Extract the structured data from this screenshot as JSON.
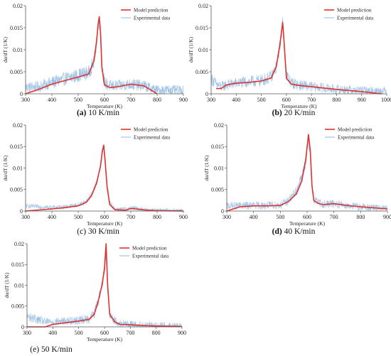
{
  "chart_data": [
    {
      "type": "line",
      "caption_letter": "(a)",
      "caption_text": " 10 K/min",
      "xlabel": "Temperature (K)",
      "ylabel": "dα/dT (1/K)",
      "xlim": [
        300,
        900
      ],
      "ylim": [
        0,
        0.02
      ],
      "xticks": [
        "300",
        "400",
        "500",
        "600",
        "700",
        "800",
        "900"
      ],
      "yticks": [
        "0",
        "0.005",
        "0.01",
        "0.015",
        "0.02"
      ],
      "legend": [
        "Model prediction",
        "Experimental data"
      ],
      "series": [
        {
          "name": "Model prediction",
          "x": [
            300,
            350,
            400,
            450,
            500,
            540,
            560,
            570,
            575,
            580,
            585,
            590,
            600,
            620,
            650,
            700,
            750,
            800
          ],
          "y": [
            0,
            0.001,
            0.0022,
            0.003,
            0.0038,
            0.0045,
            0.0075,
            0.012,
            0.0155,
            0.0175,
            0.014,
            0.006,
            0.002,
            0.0014,
            0.0016,
            0.0022,
            0.0018,
            0
          ]
        },
        {
          "name": "Experimental data",
          "x": [
            300,
            350,
            400,
            450,
            500,
            540,
            560,
            570,
            575,
            580,
            585,
            590,
            600,
            620,
            650,
            700,
            750,
            800,
            850,
            900
          ],
          "y": [
            0.0015,
            0.0016,
            0.0026,
            0.0034,
            0.0042,
            0.0048,
            0.0072,
            0.0118,
            0.015,
            0.0168,
            0.0135,
            0.0065,
            0.0025,
            0.0018,
            0.0018,
            0.0022,
            0.0018,
            0.0008,
            0.0009,
            0.0007
          ],
          "noise": 0.0016
        }
      ]
    },
    {
      "type": "line",
      "caption_letter": "(b)",
      "caption_text": " 20 K/min",
      "xlabel": "Temperature (K)",
      "ylabel": "dα/dT (1/K)",
      "xlim": [
        300,
        1000
      ],
      "ylim": [
        0,
        0.02
      ],
      "xticks": [
        "300",
        "400",
        "500",
        "600",
        "700",
        "800",
        "900",
        "1000"
      ],
      "yticks": [
        "0",
        "0.005",
        "0.01",
        "0.015",
        "0.02"
      ],
      "legend": [
        "Model prediction",
        "Experimental data"
      ],
      "series": [
        {
          "name": "Model prediction",
          "x": [
            320,
            340,
            360,
            400,
            450,
            500,
            540,
            560,
            575,
            585,
            590,
            600,
            620,
            650,
            700,
            750,
            800,
            900,
            980
          ],
          "y": [
            0.0012,
            0.0012,
            0.002,
            0.0024,
            0.0026,
            0.0029,
            0.0036,
            0.0062,
            0.0115,
            0.0162,
            0.0125,
            0.0035,
            0.0022,
            0.0019,
            0.0016,
            0.0013,
            0.001,
            0.0005,
            0
          ]
        },
        {
          "name": "Experimental data",
          "x": [
            300,
            320,
            340,
            360,
            400,
            450,
            500,
            540,
            560,
            575,
            585,
            590,
            600,
            620,
            650,
            700,
            750,
            800,
            900,
            1000
          ],
          "y": [
            0.0035,
            0.0022,
            0.0016,
            0.002,
            0.0024,
            0.0027,
            0.003,
            0.0038,
            0.0062,
            0.0112,
            0.0162,
            0.0125,
            0.0042,
            0.0025,
            0.002,
            0.0016,
            0.0013,
            0.001,
            0.0007,
            0.0006
          ],
          "noise": 0.0015
        }
      ]
    },
    {
      "type": "line",
      "caption_letter": "(c)",
      "caption_text": " 30 K/min",
      "xlabel": "Temperature (K)",
      "ylabel": "dα/dT (1/K)",
      "xlim": [
        300,
        900
      ],
      "ylim": [
        0,
        0.02
      ],
      "xticks": [
        "300",
        "400",
        "500",
        "600",
        "700",
        "800",
        "900"
      ],
      "yticks": [
        "0",
        "0.005",
        "0.01",
        "0.015",
        "0.02"
      ],
      "legend": [
        "Model prediction",
        "Experimental data"
      ],
      "series": [
        {
          "name": "Model prediction",
          "x": [
            300,
            400,
            450,
            500,
            530,
            550,
            570,
            585,
            592,
            597,
            602,
            610,
            620,
            640,
            680,
            700,
            720,
            760,
            800,
            900
          ],
          "y": [
            0,
            0.0005,
            0.0008,
            0.0012,
            0.002,
            0.0035,
            0.0065,
            0.0105,
            0.014,
            0.0153,
            0.012,
            0.0055,
            0.0015,
            0.0003,
            0.0002,
            0.0006,
            0.0005,
            0.0002,
            0.0001,
            0
          ]
        },
        {
          "name": "Experimental data",
          "x": [
            300,
            400,
            450,
            500,
            530,
            550,
            570,
            585,
            592,
            597,
            602,
            610,
            620,
            640,
            680,
            700,
            720,
            760,
            800,
            900
          ],
          "y": [
            0.0012,
            0.0008,
            0.001,
            0.0014,
            0.0022,
            0.0037,
            0.0066,
            0.0105,
            0.0138,
            0.0152,
            0.0122,
            0.006,
            0.0018,
            0.0005,
            0.0004,
            0.0007,
            0.0006,
            0.0003,
            0.0002,
            0.0001
          ],
          "noise": 0.0007
        }
      ]
    },
    {
      "type": "line",
      "caption_letter": "(d)",
      "caption_text": " 40 K/min",
      "xlabel": "Temperature (K)",
      "ylabel": "dα/dT (1/K)",
      "xlim": [
        300,
        900
      ],
      "ylim": [
        0,
        0.02
      ],
      "xticks": [
        "300",
        "400",
        "500",
        "600",
        "700",
        "800",
        "900"
      ],
      "yticks": [
        "0",
        "0.005",
        "0.01",
        "0.015",
        "0.02"
      ],
      "legend": [
        "Model prediction",
        "Experimental data"
      ],
      "series": [
        {
          "name": "Model prediction",
          "x": [
            300,
            350,
            400,
            450,
            500,
            530,
            560,
            580,
            595,
            605,
            612,
            618,
            625,
            640,
            660,
            700,
            750,
            800,
            900
          ],
          "y": [
            0,
            0.001,
            0.0012,
            0.0012,
            0.0013,
            0.0022,
            0.004,
            0.007,
            0.012,
            0.0178,
            0.014,
            0.006,
            0.0025,
            0.0018,
            0.0015,
            0.0017,
            0.0013,
            0.001,
            0.0005
          ]
        },
        {
          "name": "Experimental data",
          "x": [
            300,
            350,
            400,
            450,
            500,
            530,
            560,
            580,
            595,
            605,
            612,
            618,
            625,
            640,
            660,
            700,
            750,
            800,
            900
          ],
          "y": [
            0.0012,
            0.0012,
            0.0013,
            0.0013,
            0.0014,
            0.0024,
            0.0045,
            0.008,
            0.0115,
            0.0165,
            0.013,
            0.0062,
            0.0028,
            0.002,
            0.0016,
            0.0017,
            0.0013,
            0.001,
            0.0005
          ],
          "noise": 0.0012
        }
      ]
    },
    {
      "type": "line",
      "caption_letter": "(e)",
      "caption_text": " 50 K/min",
      "xlabel": "Temperature (K)",
      "ylabel": "dα/dT (1/K)",
      "xlim": [
        300,
        900
      ],
      "ylim": [
        0,
        0.02
      ],
      "xticks": [
        "300",
        "400",
        "500",
        "600",
        "700",
        "800",
        "900"
      ],
      "yticks": [
        "0",
        "0.005",
        "0.01",
        "0.015",
        "0.02"
      ],
      "legend": [
        "Model prediction",
        "Experimental data"
      ],
      "series": [
        {
          "name": "Model prediction",
          "x": [
            300,
            370,
            400,
            450,
            500,
            540,
            560,
            575,
            590,
            600,
            606,
            612,
            620,
            640,
            660,
            700,
            750,
            800,
            900
          ],
          "y": [
            0,
            0,
            0.0006,
            0.001,
            0.0014,
            0.0018,
            0.003,
            0.006,
            0.01,
            0.014,
            0.02,
            0.01,
            0.003,
            0.0012,
            0.0006,
            0.0005,
            0.0003,
            0.0002,
            0.0001
          ]
        },
        {
          "name": "Experimental data",
          "x": [
            300,
            370,
            400,
            450,
            500,
            540,
            560,
            575,
            590,
            600,
            606,
            612,
            620,
            640,
            660,
            700,
            750,
            800,
            900
          ],
          "y": [
            0.0025,
            0.0012,
            0.0012,
            0.0014,
            0.0016,
            0.002,
            0.0032,
            0.0062,
            0.0098,
            0.014,
            0.0185,
            0.0098,
            0.0032,
            0.0014,
            0.0008,
            0.0006,
            0.0004,
            0.0003,
            0.0002
          ],
          "noise": 0.0013
        }
      ]
    }
  ],
  "colors": {
    "model": "#e0302f",
    "experimental": "#8fb8e0"
  }
}
